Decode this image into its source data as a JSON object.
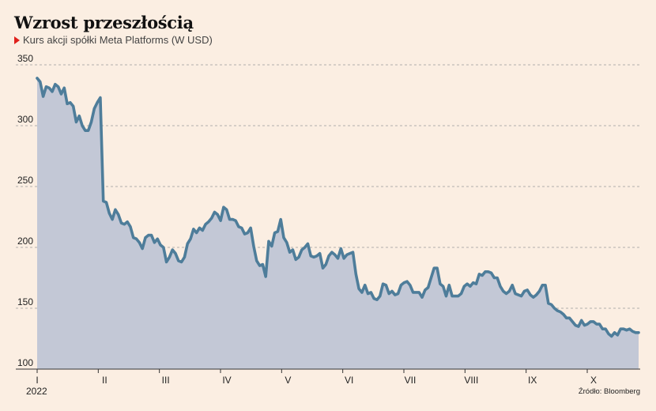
{
  "header": {
    "title": "Wzrost przeszłością",
    "subtitle": "Kurs akcji spółki Meta Platforms (W USD)"
  },
  "footer": {
    "year": "2022",
    "source": "Źródło: Bloomberg"
  },
  "colors": {
    "background": "#fbeee2",
    "line": "#4e7d9a",
    "area": "#c3c8d6",
    "grid": "#9a9a9a",
    "marker": "#e0201b"
  },
  "chart_data": {
    "type": "area",
    "ylim": [
      100,
      350
    ],
    "yticks": [
      100,
      150,
      200,
      250,
      300,
      350
    ],
    "grid": "horizontal-dashed",
    "months": [
      "I",
      "II",
      "III",
      "IV",
      "V",
      "VI",
      "VII",
      "VIII",
      "IX",
      "X"
    ],
    "series": [
      {
        "values": [
          339,
          336,
          324,
          332,
          331,
          328,
          334,
          332,
          326,
          331,
          318,
          319,
          316,
          303,
          308,
          300,
          296,
          296,
          303,
          314,
          319,
          323,
          238,
          237,
          228,
          223,
          231,
          227,
          220,
          219,
          221,
          217,
          208,
          207,
          204,
          199,
          208,
          210,
          210,
          204,
          207,
          202,
          200,
          188,
          192,
          198,
          195,
          189,
          188,
          192,
          203,
          207,
          215,
          212,
          216,
          214,
          219,
          221,
          224,
          229,
          227,
          222,
          233,
          231,
          223,
          223,
          222,
          217,
          216,
          211,
          212,
          216,
          201,
          189,
          185,
          186,
          176,
          205,
          201,
          212,
          213,
          223,
          208,
          204,
          196,
          198,
          190,
          192,
          198,
          200,
          203,
          193,
          192,
          193,
          195,
          183,
          186,
          193,
          196,
          194,
          191,
          199,
          191,
          194,
          195,
          196,
          178,
          166,
          163,
          169,
          162,
          163,
          158,
          157,
          160,
          170,
          169,
          162,
          164,
          161,
          162,
          169,
          171,
          172,
          169,
          163,
          163,
          163,
          159,
          165,
          167,
          175,
          183,
          183,
          170,
          168,
          160,
          169,
          160,
          160,
          160,
          162,
          168,
          170,
          168,
          171,
          170,
          178,
          177,
          180,
          180,
          179,
          175,
          175,
          168,
          164,
          162,
          164,
          169,
          162,
          161,
          160,
          164,
          165,
          161,
          159,
          161,
          164,
          169,
          169,
          154,
          153,
          150,
          148,
          147,
          145,
          142,
          142,
          139,
          136,
          135,
          140,
          136,
          137,
          139,
          139,
          137,
          137,
          133,
          133,
          129,
          127,
          130,
          128,
          133,
          133,
          132,
          133,
          131,
          130,
          130
        ]
      }
    ]
  }
}
